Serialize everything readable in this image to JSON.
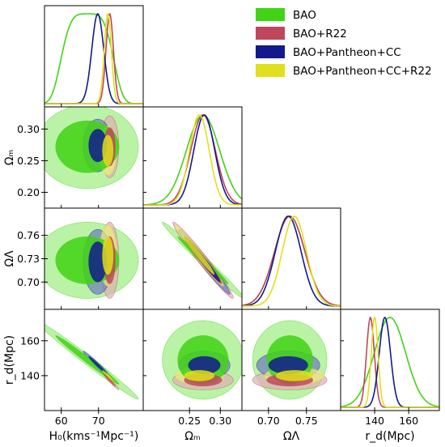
{
  "chart_data": {
    "type": "corner-plot",
    "parameters": [
      {
        "key": "H0",
        "label": "H₀(kms⁻¹Mpc⁻¹)",
        "range": [
          55.5,
          82
        ],
        "ticks": [
          60,
          70
        ]
      },
      {
        "key": "Om",
        "label": "Ωₘ",
        "range": [
          0.175,
          0.335
        ],
        "ticks": [
          0.25,
          0.3
        ],
        "tick_labels": [
          "0.25",
          "0.30"
        ],
        "ytick_labels": [
          "0.30",
          "0.25",
          "0.20"
        ],
        "yticks": [
          0.3,
          0.25,
          0.2
        ]
      },
      {
        "key": "OL",
        "label": "ΩΛ",
        "range": [
          0.665,
          0.795
        ],
        "ticks": [
          0.7,
          0.75
        ],
        "tick_labels": [
          "0.70",
          "0.75"
        ],
        "ytick_labels": [
          "0.76",
          "0.73",
          "0.70"
        ],
        "yticks": [
          0.76,
          0.73,
          0.7
        ]
      },
      {
        "key": "rd",
        "label": "r_d(Mpc)",
        "range": [
          120,
          178
        ],
        "ticks": [
          140,
          160
        ]
      }
    ],
    "legend": {
      "position": "top-right",
      "entries": [
        "BAO",
        "BAO+R22",
        "BAO+Pantheon+CC",
        "BAO+Pantheon+CC+R22"
      ]
    },
    "series": [
      {
        "name": "BAO",
        "color": "#41d414",
        "light": "#9ded80",
        "mean": {
          "H0": 67.0,
          "Om": 0.272,
          "OL": 0.728,
          "rd": 149.0
        },
        "sigma": {
          "H0": 5.6,
          "Om": 0.027,
          "OL": 0.02,
          "rd": 9.2
        },
        "cov_corr": {
          "H0-Om": 0.0,
          "H0-OL": 0.0,
          "H0-rd": -0.99,
          "Om-OL": -0.99,
          "Om-rd": 0.0,
          "OL-rd": 0.0
        }
      },
      {
        "name": "BAO+R22",
        "color": "#c0465e",
        "light": "#e0aeb6",
        "mean": {
          "H0": 73.0,
          "Om": 0.272,
          "OL": 0.728,
          "rd": 137.5
        },
        "sigma": {
          "H0": 1.0,
          "Om": 0.02,
          "OL": 0.02,
          "rd": 2.3
        },
        "cov_corr": {
          "H0-Om": 0.0,
          "H0-OL": 0.0,
          "H0-rd": -0.98,
          "Om-OL": -0.98,
          "Om-rd": 0.0,
          "OL-rd": 0.0
        }
      },
      {
        "name": "BAO+Pantheon+CC",
        "color": "#121a8c",
        "light": "#6d79c2",
        "mean": {
          "H0": 69.8,
          "Om": 0.274,
          "OL": 0.726,
          "rd": 146.0
        },
        "sigma": {
          "H0": 1.6,
          "Om": 0.017,
          "OL": 0.017,
          "rd": 3.3
        },
        "cov_corr": {
          "H0-Om": 0.0,
          "H0-OL": 0.0,
          "H0-rd": -0.98,
          "Om-OL": -0.98,
          "Om-rd": 0.0,
          "OL-rd": 0.0
        }
      },
      {
        "name": "BAO+Pantheon+CC+R22",
        "color": "#e0e01c",
        "light": "#eeee82",
        "mean": {
          "H0": 72.5,
          "Om": 0.266,
          "OL": 0.734,
          "rd": 140.0
        },
        "sigma": {
          "H0": 0.95,
          "Om": 0.016,
          "OL": 0.016,
          "rd": 2.0
        },
        "cov_corr": {
          "H0-Om": 0.0,
          "H0-OL": 0.0,
          "H0-rd": -0.98,
          "Om-OL": -0.98,
          "Om-rd": 0.0,
          "OL-rd": 0.0
        }
      }
    ],
    "grid": false
  }
}
